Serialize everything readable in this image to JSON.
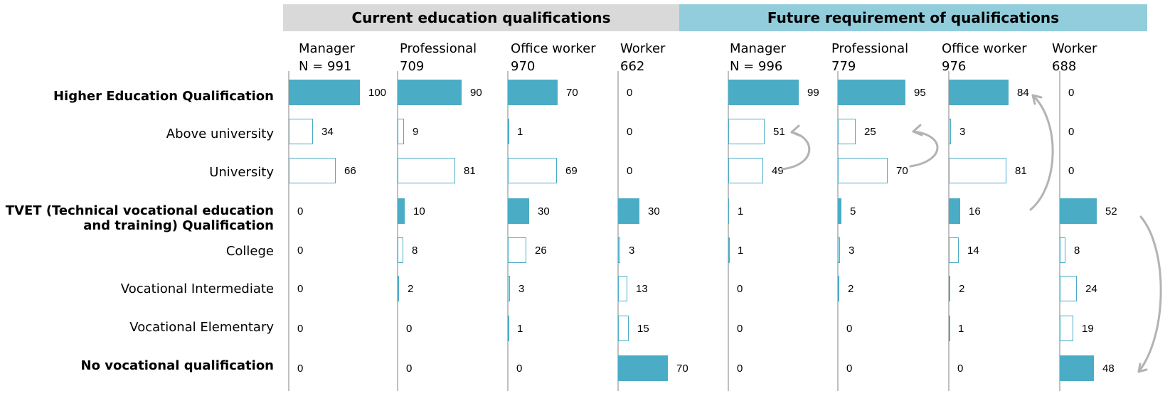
{
  "colors": {
    "accent_fill": "#4bacc6",
    "outline": "#4bacc6",
    "banner_current": "#d9d9d9",
    "banner_future": "#92cddc",
    "arrow": "#b3b3b3"
  },
  "chart_data": {
    "type": "bar",
    "orientation": "horizontal",
    "groups": [
      {
        "title": "Current education qualifications",
        "columns": [
          {
            "name": "Manager",
            "n": "N = 991",
            "values": [
              100,
              34,
              66,
              0,
              0,
              0,
              0,
              0
            ]
          },
          {
            "name": "Professional",
            "n": "709",
            "values": [
              90,
              9,
              81,
              10,
              8,
              2,
              0,
              0
            ]
          },
          {
            "name": "Office worker",
            "n": "970",
            "values": [
              70,
              1,
              69,
              30,
              26,
              3,
              1,
              0
            ]
          },
          {
            "name": "Worker",
            "n": "662",
            "values": [
              0,
              0,
              0,
              30,
              3,
              13,
              15,
              70
            ]
          }
        ]
      },
      {
        "title": "Future requirement of qualifications",
        "columns": [
          {
            "name": "Manager",
            "n": "N = 996",
            "values": [
              99,
              51,
              49,
              1,
              1,
              0,
              0,
              0
            ]
          },
          {
            "name": "Professional",
            "n": "779",
            "values": [
              95,
              25,
              70,
              5,
              3,
              2,
              0,
              0
            ]
          },
          {
            "name": "Office worker",
            "n": "976",
            "values": [
              84,
              3,
              81,
              16,
              14,
              2,
              1,
              0
            ]
          },
          {
            "name": "Worker",
            "n": "688",
            "values": [
              0,
              0,
              0,
              52,
              8,
              24,
              19,
              48
            ]
          }
        ]
      }
    ],
    "categories": [
      {
        "label": "Higher Education Qualification",
        "bold": true,
        "filled": true
      },
      {
        "label": "Above university",
        "bold": false,
        "filled": false
      },
      {
        "label": "University",
        "bold": false,
        "filled": false
      },
      {
        "label": "TVET (Technical vocational education and training) Qualification",
        "line1": "TVET (Technical vocational education",
        "line2": "and training) Qualification",
        "bold": true,
        "filled": true
      },
      {
        "label": "College",
        "bold": false,
        "filled": false
      },
      {
        "label": "Vocational Intermediate",
        "bold": false,
        "filled": false
      },
      {
        "label": "Vocational Elementary",
        "bold": false,
        "filled": false
      },
      {
        "label": "No vocational qualification",
        "bold": true,
        "filled": true
      }
    ],
    "xlim": [
      0,
      100
    ],
    "grid": false,
    "legend": "none"
  }
}
